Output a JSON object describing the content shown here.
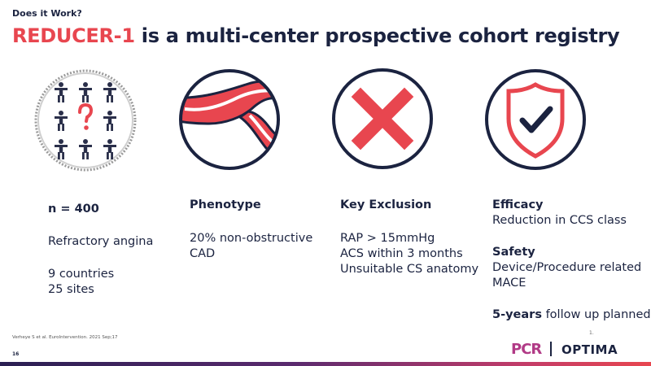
{
  "header": {
    "eyebrow": "Does it Work?",
    "title_highlight": "REDUCER-1",
    "title_rest": " is a multi-center prospective cohort registry"
  },
  "icons": [
    {
      "name": "people-group-question-icon"
    },
    {
      "name": "artery-plaque-icon"
    },
    {
      "name": "red-x-icon"
    },
    {
      "name": "shield-check-icon"
    }
  ],
  "colors": {
    "accent_red": "#e8464f",
    "navy": "#1b2340"
  },
  "columns": {
    "population": {
      "n": "n = 400",
      "indication": "Refractory angina",
      "countries": "9 countries",
      "sites": "25 sites"
    },
    "phenotype": {
      "heading": "Phenotype",
      "line1": "20% non-obstructive",
      "line2": "CAD"
    },
    "exclusion": {
      "heading": "Key Exclusion",
      "line1": "RAP > 15mmHg",
      "line2": "ACS within 3 months",
      "line3": "Unsuitable CS anatomy"
    },
    "endpoints": {
      "efficacy_heading": "Efficacy",
      "efficacy_text": "Reduction in CCS class",
      "safety_heading": "Safety",
      "safety_line1": "Device/Procedure related",
      "safety_line2": "MACE",
      "followup_bold": "5-years",
      "followup_rest": " follow up planned"
    }
  },
  "footer": {
    "citation": "Verheye S et al. EuroIntervention. 2021 Sep;17",
    "page_number": "16",
    "small_mark": "1.",
    "logo_pcr": "PCR",
    "logo_optima": "OPTIMA"
  }
}
